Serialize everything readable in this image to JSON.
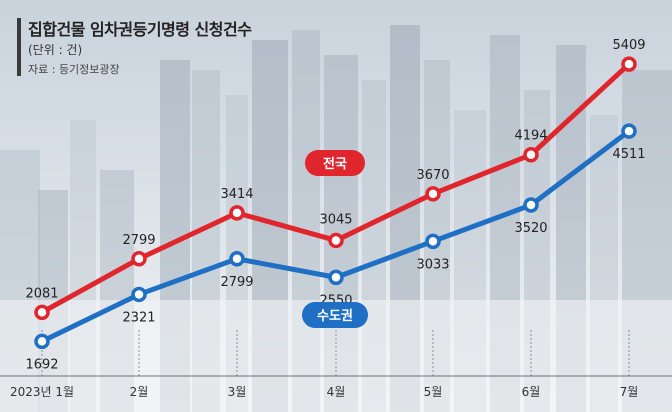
{
  "header": {
    "title": "집합건물 임차권등기명령 신청건수",
    "unit": "(단위 : 건)",
    "source": "자료 : 등기정보광장"
  },
  "chart_data": {
    "type": "line",
    "title": "집합건물 임차권등기명령 신청건수",
    "categories": [
      "2023년 1월",
      "2월",
      "3월",
      "4월",
      "5월",
      "6월",
      "7월"
    ],
    "series": [
      {
        "name": "전국",
        "color": "#e0262c",
        "values": [
          2081,
          2799,
          3414,
          3045,
          3670,
          4194,
          5409
        ]
      },
      {
        "name": "수도권",
        "color": "#1f6fc4",
        "values": [
          1692,
          2321,
          2799,
          2550,
          3033,
          3520,
          4511
        ]
      }
    ],
    "xlabel": "",
    "ylabel": "",
    "ylim": [
      1000,
      6000
    ],
    "grid": false,
    "legend": "inline labels on lines"
  }
}
